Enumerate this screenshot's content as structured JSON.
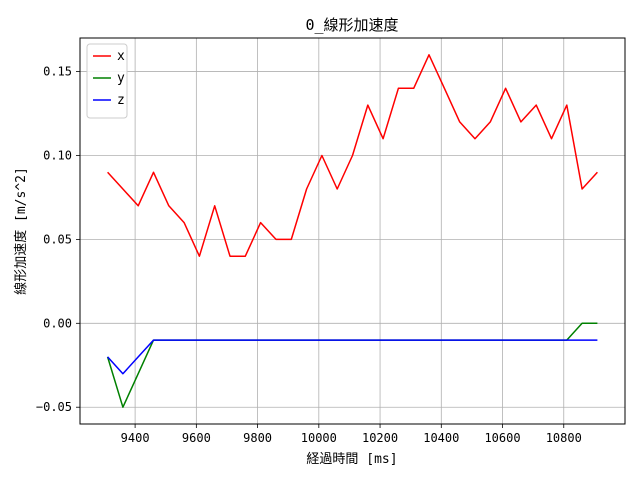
{
  "chart_data": {
    "type": "line",
    "title": "0_線形加速度",
    "xlabel": "経過時間 [ms]",
    "ylabel": "線形加速度 [m/s^2]",
    "xlim": [
      9220,
      11000
    ],
    "ylim": [
      -0.06,
      0.17
    ],
    "xticks": [
      9400,
      9600,
      9800,
      10000,
      10200,
      10400,
      10600,
      10800
    ],
    "yticks": [
      -0.05,
      0.0,
      0.05,
      0.1,
      0.15
    ],
    "ytick_labels": [
      "−0.05",
      "0.00",
      "0.05",
      "0.10",
      "0.15"
    ],
    "grid": true,
    "legend_position": "upper-left",
    "x": [
      9310,
      9360,
      9410,
      9460,
      9510,
      9560,
      9610,
      9660,
      9710,
      9760,
      9810,
      9860,
      9910,
      9960,
      10010,
      10060,
      10110,
      10160,
      10210,
      10260,
      10310,
      10360,
      10410,
      10460,
      10510,
      10560,
      10610,
      10660,
      10710,
      10760,
      10810,
      10860,
      10910
    ],
    "series": [
      {
        "name": "x",
        "color": "#ff0000",
        "values": [
          0.09,
          0.08,
          0.07,
          0.09,
          0.07,
          0.06,
          0.04,
          0.07,
          0.04,
          0.04,
          0.06,
          0.05,
          0.05,
          0.08,
          0.1,
          0.08,
          0.1,
          0.13,
          0.11,
          0.14,
          0.14,
          0.16,
          0.14,
          0.12,
          0.11,
          0.12,
          0.14,
          0.12,
          0.13,
          0.11,
          0.13,
          0.08,
          0.09
        ]
      },
      {
        "name": "y",
        "color": "#008000",
        "values": [
          -0.02,
          -0.05,
          -0.03,
          -0.01,
          -0.01,
          -0.01,
          -0.01,
          -0.01,
          -0.01,
          -0.01,
          -0.01,
          -0.01,
          -0.01,
          -0.01,
          -0.01,
          -0.01,
          -0.01,
          -0.01,
          -0.01,
          -0.01,
          -0.01,
          -0.01,
          -0.01,
          -0.01,
          -0.01,
          -0.01,
          -0.01,
          -0.01,
          -0.01,
          -0.01,
          -0.01,
          0.0,
          0.0
        ]
      },
      {
        "name": "z",
        "color": "#0000ff",
        "values": [
          -0.02,
          -0.03,
          -0.02,
          -0.01,
          -0.01,
          -0.01,
          -0.01,
          -0.01,
          -0.01,
          -0.01,
          -0.01,
          -0.01,
          -0.01,
          -0.01,
          -0.01,
          -0.01,
          -0.01,
          -0.01,
          -0.01,
          -0.01,
          -0.01,
          -0.01,
          -0.01,
          -0.01,
          -0.01,
          -0.01,
          -0.01,
          -0.01,
          -0.01,
          -0.01,
          -0.01,
          -0.01,
          -0.01
        ]
      }
    ]
  }
}
